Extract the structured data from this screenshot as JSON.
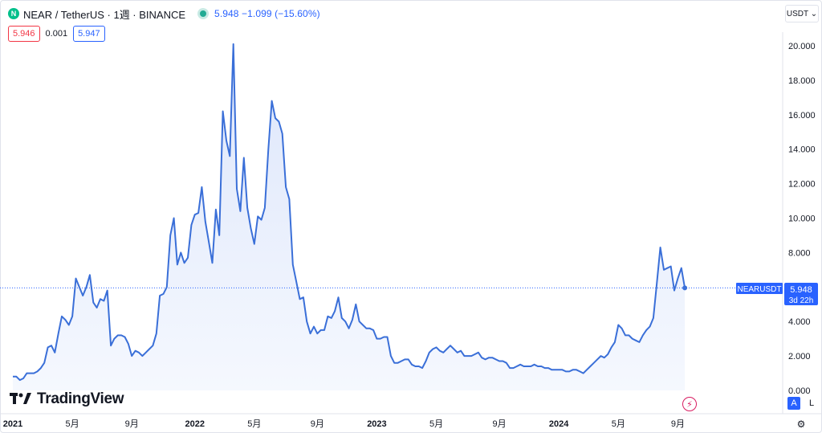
{
  "header": {
    "symbol_logo_letter": "N",
    "title": "NEAR / TetherUS · 1週 · BINANCE",
    "price_change": "5.948  −1.099 (−15.60%)"
  },
  "trade": {
    "sell": "5.946",
    "spread": "0.001",
    "buy": "5.947"
  },
  "currency": {
    "label": "USDT ⌄"
  },
  "brand": {
    "name": "TradingView"
  },
  "price_tag": {
    "symbol": "NEARUSDT",
    "price": "5.948",
    "countdown": "3d 22h"
  },
  "controls": {
    "auto": "A",
    "log": "L",
    "settings_icon": "gear-icon",
    "badge_icon": "lightning-icon"
  },
  "colors": {
    "line": "#3a6fd8",
    "fill_top": "#dde6fb",
    "fill_bottom": "#f5f8fe",
    "price_tag_bg": "#2962ff",
    "sell": "#f23645",
    "buy": "#2962ff"
  },
  "chart_data": {
    "type": "area",
    "y_axis_labels": [
      "20.000",
      "18.000",
      "16.000",
      "14.000",
      "12.000",
      "10.000",
      "8.000",
      "6.000",
      "4.000",
      "2.000",
      "0.000"
    ],
    "ylim": [
      0,
      20
    ],
    "x_axis_labels": [
      "2021",
      "5月",
      "9月",
      "2022",
      "5月",
      "9月",
      "2023",
      "5月",
      "9月",
      "2024",
      "5月",
      "9月"
    ],
    "x_axis_label_weeks": [
      0,
      17,
      34,
      52,
      69,
      87,
      104,
      121,
      139,
      156,
      173,
      190
    ],
    "current_price": 5.948,
    "grid": false,
    "series": [
      {
        "values": [
          0.8,
          0.8,
          0.6,
          0.7,
          1.0,
          1.0,
          1.0,
          1.1,
          1.3,
          1.6,
          2.5,
          2.6,
          2.2,
          3.3,
          4.3,
          4.1,
          3.8,
          4.3,
          6.5,
          6.0,
          5.5,
          6.0,
          6.7,
          5.1,
          4.8,
          5.3,
          5.2,
          5.8,
          2.6,
          3.0,
          3.2,
          3.2,
          3.1,
          2.7,
          2.0,
          2.3,
          2.2,
          2.0,
          2.2,
          2.4,
          2.6,
          3.3,
          5.5,
          5.6,
          6.0,
          9.0,
          10.0,
          7.3,
          8.0,
          7.4,
          7.7,
          9.6,
          10.2,
          10.3,
          11.8,
          9.8,
          8.6,
          7.4,
          10.5,
          9.0,
          16.2,
          14.5,
          13.6,
          20.1,
          11.7,
          10.4,
          13.5,
          10.6,
          9.4,
          8.5,
          10.1,
          9.9,
          10.6,
          14.0,
          16.8,
          15.8,
          15.6,
          14.9,
          11.8,
          11.1,
          7.3,
          6.3,
          5.3,
          5.4,
          4.0,
          3.3,
          3.7,
          3.3,
          3.5,
          3.5,
          4.3,
          4.2,
          4.6,
          5.4,
          4.2,
          4.0,
          3.6,
          4.1,
          5.0,
          4.0,
          3.8,
          3.6,
          3.6,
          3.5,
          3.0,
          3.0,
          3.1,
          3.1,
          2.0,
          1.6,
          1.6,
          1.7,
          1.8,
          1.8,
          1.5,
          1.4,
          1.4,
          1.3,
          1.7,
          2.2,
          2.4,
          2.5,
          2.3,
          2.2,
          2.4,
          2.6,
          2.4,
          2.2,
          2.3,
          2.0,
          2.0,
          2.0,
          2.1,
          2.2,
          1.9,
          1.8,
          1.9,
          1.9,
          1.8,
          1.7,
          1.7,
          1.6,
          1.3,
          1.3,
          1.4,
          1.5,
          1.4,
          1.4,
          1.4,
          1.5,
          1.4,
          1.4,
          1.3,
          1.3,
          1.2,
          1.2,
          1.2,
          1.2,
          1.1,
          1.1,
          1.2,
          1.2,
          1.1,
          1.0,
          1.2,
          1.4,
          1.6,
          1.8,
          2.0,
          1.9,
          2.1,
          2.5,
          2.8,
          3.8,
          3.6,
          3.2,
          3.2,
          3.0,
          2.9,
          2.8,
          3.2,
          3.5,
          3.7,
          4.2,
          6.2,
          8.3,
          7.0,
          7.1,
          7.2,
          5.8,
          6.5,
          7.1,
          5.948
        ]
      }
    ]
  }
}
